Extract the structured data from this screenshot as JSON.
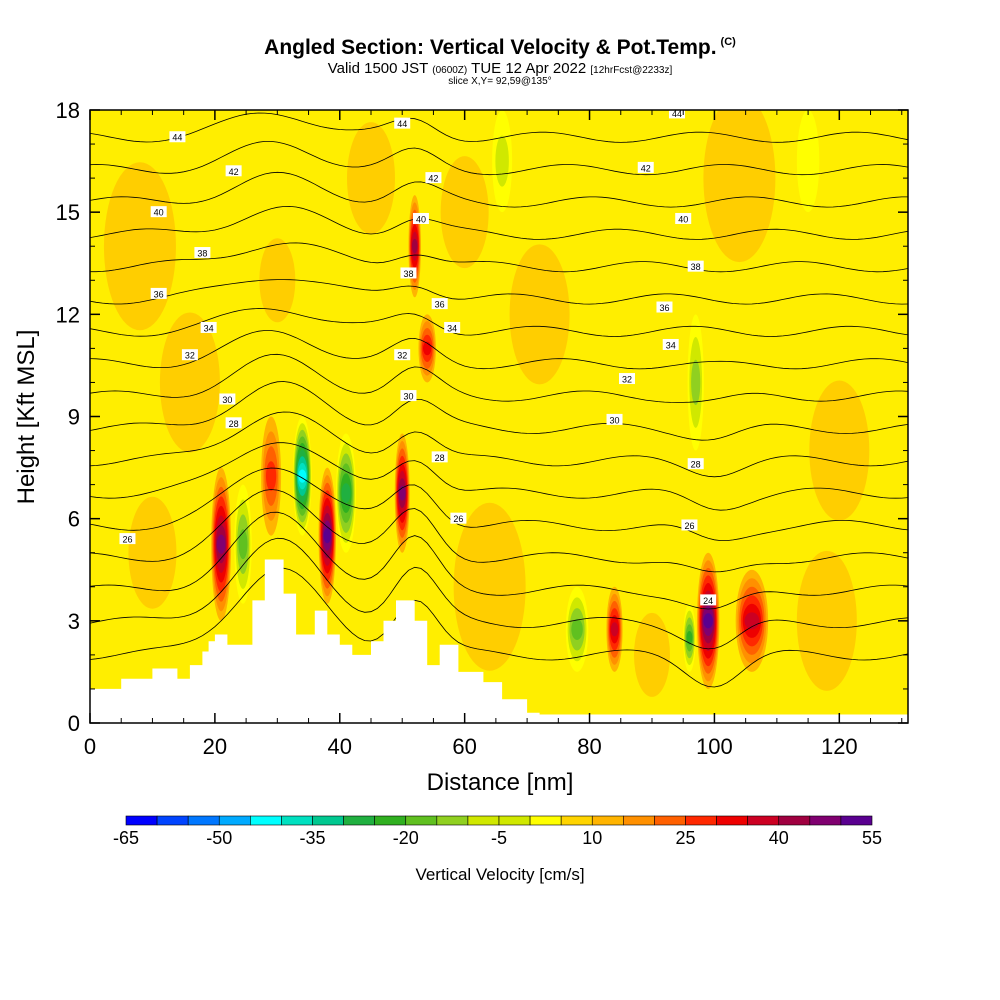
{
  "title": {
    "main": "Angled Section: Vertical Velocity & Pot.Temp.",
    "copyright": "(C)",
    "valid_line_a": "Valid 1500 JST",
    "valid_line_utc": "(0600Z)",
    "valid_line_b": "TUE 12 Apr 2022",
    "valid_line_fcst": "[12hrFcst@2233z]",
    "slice_line": "slice X,Y= 92,59@135°"
  },
  "colors": {
    "background_field": "#ffee00",
    "terrain": "#ffffff",
    "contour": "#000000",
    "scale": [
      "#0000ff",
      "#0044ff",
      "#0077ff",
      "#00aaff",
      "#00ffff",
      "#00e0c0",
      "#00c890",
      "#20b040",
      "#30b020",
      "#60c020",
      "#90d020",
      "#d0e800",
      "#ffff00",
      "#ffd400",
      "#ffb400",
      "#ff9000",
      "#ff6000",
      "#ff2800",
      "#ee0000",
      "#cc0022",
      "#a00040",
      "#800070",
      "#5a0090"
    ]
  },
  "chart_data": {
    "type": "heatmap",
    "xlabel": "Distance [nm]",
    "ylabel": "Height [Kft MSL]",
    "xlim": [
      0,
      131
    ],
    "ylim": [
      0,
      18
    ],
    "xticks": [
      "0",
      "20",
      "40",
      "60",
      "80",
      "100",
      "120"
    ],
    "yticks": [
      "0",
      "3",
      "6",
      "9",
      "12",
      "15",
      "18"
    ],
    "colorbar": {
      "label": "Vertical Velocity [cm/s]",
      "ticks": [
        "-65",
        "-50",
        "-35",
        "-20",
        "-5",
        "10",
        "25",
        "40",
        "55"
      ]
    },
    "velocity_features": [
      {
        "x": 21,
        "y0": 3.0,
        "y1": 7.5,
        "w": 1.6,
        "v": 45
      },
      {
        "x": 24.5,
        "y0": 3.5,
        "y1": 7.0,
        "w": 1.4,
        "v": -25
      },
      {
        "x": 29,
        "y0": 5.5,
        "y1": 9.0,
        "w": 1.6,
        "v": 25
      },
      {
        "x": 34,
        "y0": 5.5,
        "y1": 9.0,
        "w": 1.5,
        "v": -50
      },
      {
        "x": 38,
        "y0": 3.5,
        "y1": 7.5,
        "w": 1.4,
        "v": 50
      },
      {
        "x": 41,
        "y0": 5.0,
        "y1": 8.5,
        "w": 1.6,
        "v": -35
      },
      {
        "x": 50,
        "y0": 5.0,
        "y1": 8.5,
        "w": 1.2,
        "v": 45
      },
      {
        "x": 52,
        "y0": 12.5,
        "y1": 15.5,
        "w": 1.0,
        "v": 40
      },
      {
        "x": 54,
        "y0": 10.0,
        "y1": 12.0,
        "w": 1.4,
        "v": 30
      },
      {
        "x": 78,
        "y0": 1.5,
        "y1": 4.0,
        "w": 1.8,
        "v": -25
      },
      {
        "x": 84,
        "y0": 1.5,
        "y1": 4.0,
        "w": 1.3,
        "v": 35
      },
      {
        "x": 96,
        "y0": 1.5,
        "y1": 3.5,
        "w": 1.0,
        "v": -30
      },
      {
        "x": 99,
        "y0": 1.0,
        "y1": 5.0,
        "w": 1.8,
        "v": 50
      },
      {
        "x": 106,
        "y0": 1.5,
        "y1": 4.5,
        "w": 2.6,
        "v": 35
      },
      {
        "x": 97,
        "y0": 8.0,
        "y1": 12.0,
        "w": 1.3,
        "v": -20
      },
      {
        "x": 66,
        "y0": 15.0,
        "y1": 18.0,
        "w": 1.6,
        "v": -15
      },
      {
        "x": 115,
        "y0": 15.0,
        "y1": 18.0,
        "w": 1.8,
        "v": -12
      }
    ],
    "theta_contour_labels": [
      {
        "label": "44",
        "x": 14,
        "y": 17.2
      },
      {
        "label": "44",
        "x": 50,
        "y": 17.6
      },
      {
        "label": "44",
        "x": 94,
        "y": 17.9
      },
      {
        "label": "42",
        "x": 23,
        "y": 16.2
      },
      {
        "label": "42",
        "x": 55,
        "y": 16.0
      },
      {
        "label": "42",
        "x": 89,
        "y": 16.3
      },
      {
        "label": "40",
        "x": 11,
        "y": 15.0
      },
      {
        "label": "40",
        "x": 53,
        "y": 14.8
      },
      {
        "label": "40",
        "x": 95,
        "y": 14.8
      },
      {
        "label": "38",
        "x": 18,
        "y": 13.8
      },
      {
        "label": "38",
        "x": 51,
        "y": 13.2
      },
      {
        "label": "38",
        "x": 97,
        "y": 13.4
      },
      {
        "label": "36",
        "x": 11,
        "y": 12.6
      },
      {
        "label": "36",
        "x": 56,
        "y": 12.3
      },
      {
        "label": "36",
        "x": 92,
        "y": 12.2
      },
      {
        "label": "34",
        "x": 19,
        "y": 11.6
      },
      {
        "label": "34",
        "x": 58,
        "y": 11.6
      },
      {
        "label": "34",
        "x": 93,
        "y": 11.1
      },
      {
        "label": "32",
        "x": 16,
        "y": 10.8
      },
      {
        "label": "32",
        "x": 50,
        "y": 10.8
      },
      {
        "label": "32",
        "x": 86,
        "y": 10.1
      },
      {
        "label": "30",
        "x": 22,
        "y": 9.5
      },
      {
        "label": "30",
        "x": 51,
        "y": 9.6
      },
      {
        "label": "30",
        "x": 84,
        "y": 8.9
      },
      {
        "label": "28",
        "x": 23,
        "y": 8.8
      },
      {
        "label": "28",
        "x": 56,
        "y": 7.8
      },
      {
        "label": "28",
        "x": 97,
        "y": 7.6
      },
      {
        "label": "26",
        "x": 59,
        "y": 6.0
      },
      {
        "label": "26",
        "x": 96,
        "y": 5.8
      },
      {
        "label": "26",
        "x": 6,
        "y": 5.4
      },
      {
        "label": "24",
        "x": 99,
        "y": 3.6
      }
    ]
  }
}
